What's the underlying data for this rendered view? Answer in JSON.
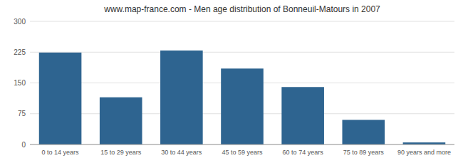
{
  "chart_data": {
    "type": "bar",
    "title": "www.map-france.com - Men age distribution of Bonneuil-Matours in 2007",
    "categories": [
      "0 to 14 years",
      "15 to 29 years",
      "30 to 44 years",
      "45 to 59 years",
      "60 to 74 years",
      "75 to 89 years",
      "90 years and more"
    ],
    "values": [
      224,
      115,
      229,
      185,
      140,
      60,
      5
    ],
    "color": "#2e6490",
    "ylim": [
      0,
      300
    ],
    "yticks": [
      0,
      75,
      150,
      225,
      300
    ],
    "grid": true
  }
}
